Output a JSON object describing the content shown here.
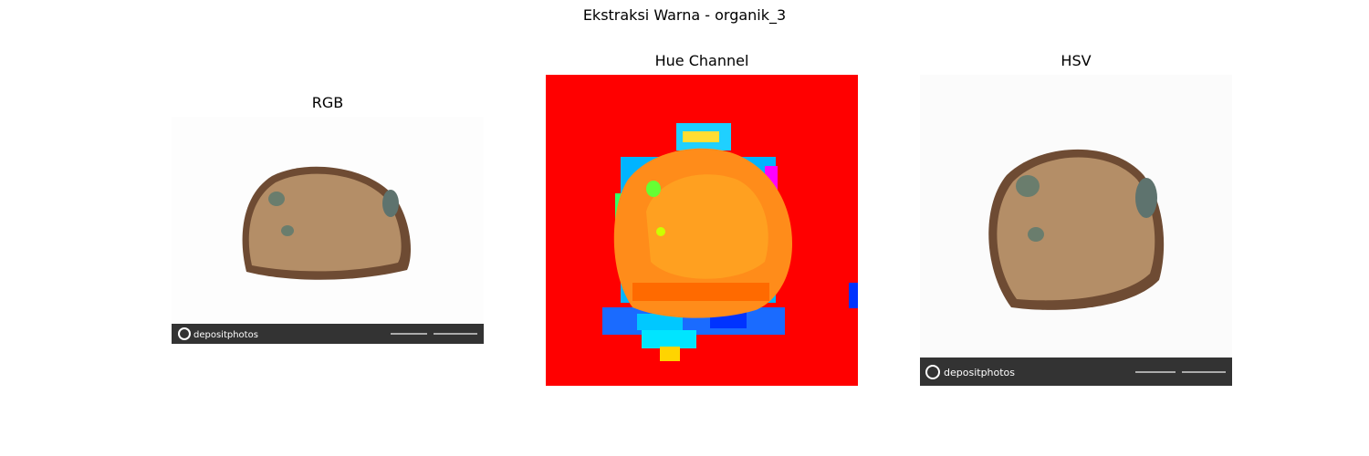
{
  "figure": {
    "title": "Ekstraksi Warna - organik_3"
  },
  "panels": [
    {
      "title": "RGB",
      "watermark": "depositphotos"
    },
    {
      "title": "Hue Channel"
    },
    {
      "title": "HSV",
      "watermark": "depositphotos"
    }
  ],
  "colors": {
    "bread_crumb": "#b48e67",
    "bread_crust": "#6e4b33",
    "mold": "#6a7d6d",
    "hue_background": "#ff0000",
    "hue_bread": "#ff8c1a",
    "watermark_bar": "#333333"
  }
}
